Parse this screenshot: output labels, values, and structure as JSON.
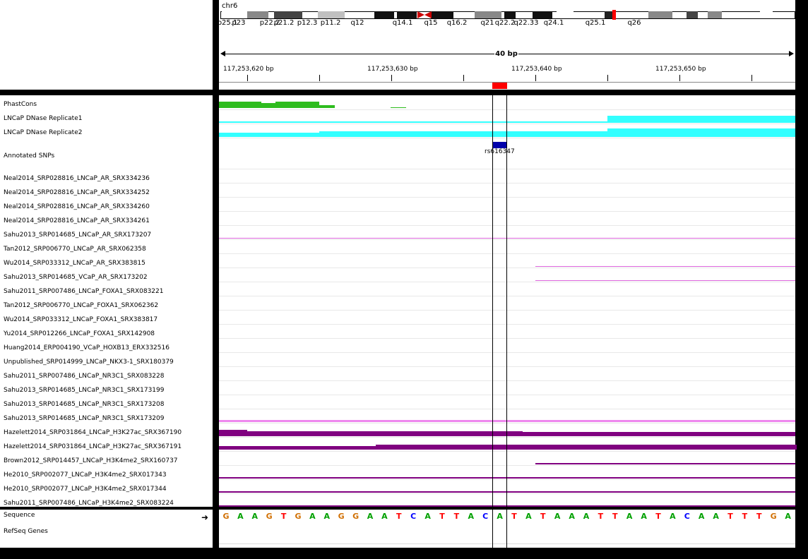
{
  "chromosome": "chr6",
  "ideogram": {
    "bands": [
      {
        "label": "p25.1",
        "color": "#ffffff"
      },
      {
        "label": "p23",
        "color": "#888888"
      },
      {
        "label": "p22.2",
        "color": "#444444"
      },
      {
        "label": "p21.2",
        "color": "#c0c0c0"
      },
      {
        "label": "p12.3",
        "color": "#111111"
      },
      {
        "label": "p11.2",
        "color": "#111111"
      },
      {
        "label": "q12",
        "color": "#111111"
      },
      {
        "label": "q14.1",
        "color": "#888888"
      },
      {
        "label": "q15",
        "color": "#111111"
      },
      {
        "label": "q16.2",
        "color": "#111111"
      },
      {
        "label": "q21",
        "color": "#ffffff"
      },
      {
        "label": "q22.2",
        "color": "#222222"
      },
      {
        "label": "q22.33",
        "color": "#888888"
      },
      {
        "label": "q24.1",
        "color": "#444444"
      },
      {
        "label": "q25.1",
        "color": "#888888"
      },
      {
        "label": "q26",
        "color": "#ffffff"
      }
    ]
  },
  "ruler": {
    "span_label": "40 bp",
    "coords": [
      "117,253,620 bp",
      "117,253,630 bp",
      "117,253,640 bp",
      "117,253,650 bp"
    ]
  },
  "tracks": [
    {
      "name": "PhastCons"
    },
    {
      "name": "LNCaP DNase Replicate1"
    },
    {
      "name": "LNCaP DNase Replicate2"
    },
    {
      "name": "Annotated SNPs"
    },
    {
      "name": "Neal2014_SRP028816_LNCaP_AR_SRX334236"
    },
    {
      "name": "Neal2014_SRP028816_LNCaP_AR_SRX334252"
    },
    {
      "name": "Neal2014_SRP028816_LNCaP_AR_SRX334260"
    },
    {
      "name": "Neal2014_SRP028816_LNCaP_AR_SRX334261"
    },
    {
      "name": "Sahu2013_SRP014685_LNCaP_AR_SRX173207"
    },
    {
      "name": "Tan2012_SRP006770_LNCaP_AR_SRX062358"
    },
    {
      "name": "Wu2014_SRP033312_LNCaP_AR_SRX383815"
    },
    {
      "name": "Sahu2013_SRP014685_VCaP_AR_SRX173202"
    },
    {
      "name": "Sahu2011_SRP007486_LNCaP_FOXA1_SRX083221"
    },
    {
      "name": "Tan2012_SRP006770_LNCaP_FOXA1_SRX062362"
    },
    {
      "name": "Wu2014_SRP033312_LNCaP_FOXA1_SRX383817"
    },
    {
      "name": "Yu2014_SRP012266_LNCaP_FOXA1_SRX142908"
    },
    {
      "name": "Huang2014_ERP004190_VCaP_HOXB13_ERX332516"
    },
    {
      "name": "Unpublished_SRP014999_LNCaP_NKX3-1_SRX180379"
    },
    {
      "name": "Sahu2011_SRP007486_LNCaP_NR3C1_SRX083228"
    },
    {
      "name": "Sahu2013_SRP014685_LNCaP_NR3C1_SRX173199"
    },
    {
      "name": "Sahu2013_SRP014685_LNCaP_NR3C1_SRX173208"
    },
    {
      "name": "Sahu2013_SRP014685_LNCaP_NR3C1_SRX173209"
    },
    {
      "name": "Hazelett2014_SRP031864_LNCaP_H3K27ac_SRX367190"
    },
    {
      "name": "Hazelett2014_SRP031864_LNCaP_H3K27ac_SRX367191"
    },
    {
      "name": "Brown2012_SRP014457_LNCaP_H3K4me2_SRX160737"
    },
    {
      "name": "He2010_SRP002077_LNCaP_H3K4me2_SRX017343"
    },
    {
      "name": "He2010_SRP002077_LNCaP_H3K4me2_SRX017344"
    },
    {
      "name": "Sahu2011_SRP007486_LNCaP_H3K4me2_SRX083224"
    }
  ],
  "snp": {
    "id": "rs616347"
  },
  "sequence_track": {
    "name": "Sequence",
    "bases": "GAAGTGAAGGAATCATTACATATAAATTAATACAATTTGA"
  },
  "refseq_track": {
    "name": "RefSeq Genes"
  },
  "colors": {
    "A": "#00a000",
    "C": "#0000ff",
    "G": "#d17105",
    "T": "#ff0000",
    "phastcons": "#2ebc1e",
    "dnase": "#33ffff",
    "snp": "#0000aa",
    "tf": "#dd66dd",
    "histone": "#800080"
  }
}
